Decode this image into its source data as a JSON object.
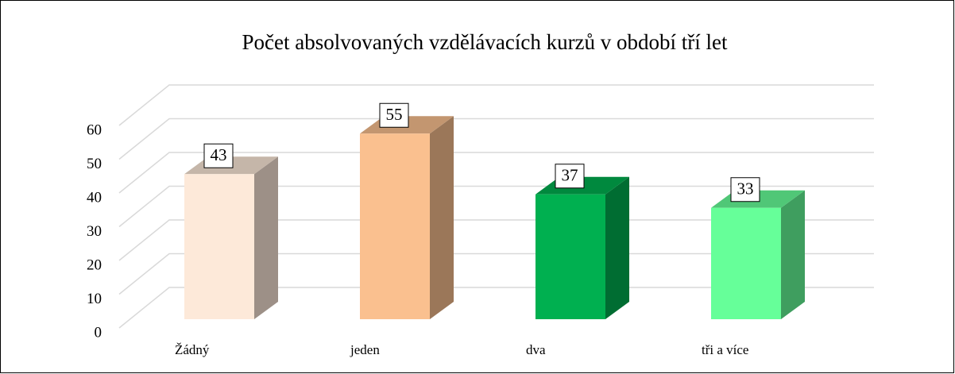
{
  "chart_data": {
    "type": "bar3d",
    "title": "Počet absolvovaných vzdělávacích kurzů v období tří let",
    "categories": [
      "Žádný",
      "jeden",
      "dva",
      "tři a více"
    ],
    "values": [
      43,
      55,
      37,
      33
    ],
    "colors": [
      "#fde9d9",
      "#fac08f",
      "#00b050",
      "#66ff99"
    ],
    "ylim": [
      0,
      60
    ],
    "yticks": [
      0,
      10,
      20,
      30,
      40,
      50,
      60
    ],
    "grid": true,
    "data_labels": true
  }
}
